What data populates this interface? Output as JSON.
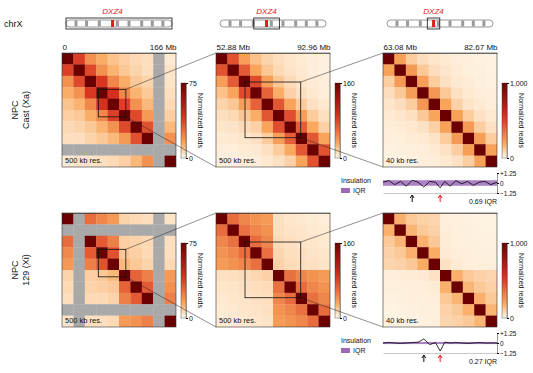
{
  "ideogram": {
    "label": "chrX",
    "locus": "DXZ4",
    "locus_color": "#e41a1c",
    "locus_mb": 72.9
  },
  "chart_data": [
    {
      "type": "heatmap",
      "xlim": [
        0,
        166
      ],
      "xticks": [
        0,
        {
          "value": 166,
          "label": "166 Mb"
        }
      ],
      "annotation": "500 kb res.",
      "ylabel": [
        "NPC",
        "Cast (Xa)"
      ],
      "colorbar_label": "Normalized reads",
      "colorbar_range": [
        0,
        75
      ],
      "colorbar_ticks": [
        0,
        75
      ],
      "cells": [
        [
          75,
          38,
          20,
          14,
          10,
          8,
          6,
          5,
          null,
          3
        ],
        [
          38,
          75,
          36,
          20,
          13,
          9,
          7,
          5,
          null,
          4
        ],
        [
          20,
          36,
          75,
          40,
          22,
          14,
          9,
          7,
          null,
          4
        ],
        [
          14,
          20,
          40,
          75,
          42,
          22,
          13,
          9,
          null,
          5
        ],
        [
          10,
          13,
          22,
          42,
          75,
          38,
          20,
          12,
          null,
          6
        ],
        [
          8,
          9,
          14,
          22,
          38,
          75,
          36,
          18,
          null,
          8
        ],
        [
          6,
          7,
          9,
          13,
          20,
          36,
          75,
          34,
          null,
          12
        ],
        [
          5,
          5,
          7,
          9,
          12,
          18,
          34,
          75,
          null,
          20
        ],
        [
          null,
          null,
          null,
          null,
          null,
          null,
          null,
          null,
          null,
          null
        ],
        [
          3,
          4,
          4,
          5,
          6,
          8,
          12,
          20,
          null,
          75
        ]
      ]
    },
    {
      "type": "heatmap",
      "xlim": [
        52.88,
        92.96
      ],
      "xticks": [
        {
          "value": 52.88,
          "label": "52.88 Mb"
        },
        {
          "value": 92.96,
          "label": "92.96 Mb"
        }
      ],
      "annotation": "500 kb res.",
      "colorbar_label": "Normalized reads",
      "colorbar_range": [
        0,
        160
      ],
      "colorbar_ticks": [
        0,
        160
      ],
      "cells": [
        [
          160,
          72,
          36,
          22,
          15,
          11,
          8,
          6,
          5,
          4
        ],
        [
          72,
          160,
          68,
          34,
          20,
          13,
          9,
          7,
          5,
          4
        ],
        [
          36,
          68,
          160,
          76,
          36,
          20,
          12,
          8,
          6,
          5
        ],
        [
          22,
          34,
          76,
          160,
          64,
          30,
          16,
          10,
          7,
          5
        ],
        [
          15,
          20,
          36,
          64,
          160,
          70,
          34,
          18,
          10,
          7
        ],
        [
          11,
          13,
          20,
          30,
          70,
          160,
          74,
          36,
          18,
          10
        ],
        [
          8,
          9,
          12,
          16,
          34,
          74,
          160,
          66,
          32,
          16
        ],
        [
          6,
          7,
          8,
          10,
          18,
          36,
          66,
          160,
          70,
          34
        ],
        [
          5,
          5,
          6,
          7,
          10,
          18,
          32,
          70,
          160,
          72
        ],
        [
          4,
          4,
          5,
          5,
          7,
          10,
          16,
          34,
          72,
          160
        ]
      ]
    },
    {
      "type": "heatmap",
      "xlim": [
        63.08,
        82.67
      ],
      "xticks": [
        {
          "value": 63.08,
          "label": "63.08 Mb"
        },
        {
          "value": 82.67,
          "label": "82.67 Mb"
        }
      ],
      "annotation": "40 kb res.",
      "colorbar_label": "Normalized reads",
      "colorbar_range": [
        0,
        1000
      ],
      "colorbar_ticks": [
        0,
        {
          "value": 1000,
          "label": "1,000"
        }
      ],
      "cells": [
        [
          1000,
          220,
          110,
          70,
          50,
          40,
          32,
          26,
          22,
          18
        ],
        [
          220,
          1000,
          240,
          120,
          70,
          48,
          36,
          28,
          24,
          20
        ],
        [
          110,
          240,
          1000,
          230,
          110,
          64,
          44,
          34,
          26,
          22
        ],
        [
          70,
          120,
          230,
          1000,
          250,
          120,
          60,
          42,
          32,
          26
        ],
        [
          50,
          70,
          110,
          250,
          1000,
          210,
          100,
          56,
          40,
          32
        ],
        [
          40,
          48,
          64,
          120,
          210,
          1000,
          220,
          110,
          60,
          42
        ],
        [
          32,
          36,
          44,
          60,
          100,
          220,
          1000,
          240,
          110,
          60
        ],
        [
          26,
          28,
          34,
          42,
          56,
          110,
          240,
          1000,
          230,
          110
        ],
        [
          22,
          24,
          26,
          32,
          40,
          60,
          110,
          230,
          1000,
          220
        ],
        [
          18,
          20,
          22,
          26,
          32,
          42,
          60,
          110,
          220,
          1000
        ]
      ]
    },
    {
      "type": "line",
      "title": "Insulation",
      "tick_labels": "y",
      "xlim": [
        63.08,
        82.67
      ],
      "ylim": [
        -1.25,
        1.25
      ],
      "yticks": [
        {
          "value": -1.25,
          "label": "−1.25"
        },
        0,
        {
          "value": 1.25,
          "label": "+1.25"
        }
      ],
      "x": [
        63.08,
        64.1,
        65.1,
        66.1,
        67.1,
        68.1,
        69.1,
        70.1,
        71.1,
        72.1,
        72.9,
        73.7,
        74.6,
        75.6,
        76.6,
        77.6,
        78.6,
        79.6,
        80.6,
        81.6,
        82.67
      ],
      "band": {
        "name": "IQR",
        "color": "#9b6bb8",
        "range": [
          -0.345,
          0.345
        ]
      },
      "annotation": "0.69 IQR",
      "series": [
        {
          "color": "#000000",
          "values": [
            0.1,
            0.3,
            -0.2,
            0.2,
            -0.4,
            0.35,
            0.1,
            -0.5,
            0.2,
            0.1,
            -0.6,
            0.2,
            -0.4,
            0.3,
            -0.1,
            0.2,
            -0.3,
            0.1,
            0.2,
            -0.2,
            0.1
          ]
        }
      ]
    },
    {
      "type": "heatmap",
      "xlim": [
        0,
        166
      ],
      "tick_labels": false,
      "annotation": "500 kb res.",
      "ylabel": [
        "NPC",
        "129 (Xi)"
      ],
      "colorbar_label": "Normalized reads",
      "colorbar_range": [
        0,
        75
      ],
      "colorbar_ticks": [
        0,
        75
      ],
      "cells": [
        [
          75,
          null,
          28,
          22,
          18,
          7,
          6,
          5,
          null,
          4
        ],
        [
          null,
          null,
          null,
          null,
          null,
          null,
          null,
          null,
          null,
          null
        ],
        [
          28,
          null,
          75,
          32,
          24,
          8,
          7,
          6,
          null,
          5
        ],
        [
          22,
          null,
          32,
          75,
          34,
          9,
          8,
          6,
          null,
          5
        ],
        [
          18,
          null,
          24,
          34,
          75,
          12,
          9,
          7,
          null,
          6
        ],
        [
          7,
          null,
          8,
          9,
          12,
          75,
          30,
          24,
          null,
          18
        ],
        [
          6,
          null,
          7,
          8,
          9,
          30,
          75,
          32,
          null,
          20
        ],
        [
          5,
          null,
          6,
          6,
          7,
          24,
          32,
          75,
          null,
          24
        ],
        [
          null,
          null,
          null,
          null,
          null,
          null,
          null,
          null,
          null,
          null
        ],
        [
          4,
          null,
          5,
          5,
          6,
          18,
          20,
          24,
          null,
          75
        ]
      ]
    },
    {
      "type": "heatmap",
      "xlim": [
        52.88,
        92.96
      ],
      "tick_labels": false,
      "annotation": "500 kb res.",
      "colorbar_label": "Normalized reads",
      "colorbar_range": [
        0,
        160
      ],
      "colorbar_ticks": [
        0,
        160
      ],
      "cells": [
        [
          160,
          60,
          48,
          42,
          38,
          10,
          8,
          7,
          6,
          5
        ],
        [
          60,
          160,
          58,
          48,
          42,
          11,
          9,
          8,
          7,
          6
        ],
        [
          48,
          58,
          160,
          60,
          48,
          12,
          10,
          9,
          8,
          7
        ],
        [
          42,
          48,
          60,
          160,
          58,
          14,
          11,
          10,
          9,
          8
        ],
        [
          38,
          42,
          48,
          58,
          160,
          16,
          12,
          11,
          10,
          9
        ],
        [
          10,
          11,
          12,
          14,
          16,
          160,
          58,
          48,
          42,
          38
        ],
        [
          8,
          9,
          10,
          11,
          12,
          58,
          160,
          60,
          48,
          42
        ],
        [
          7,
          8,
          9,
          10,
          11,
          48,
          60,
          160,
          58,
          48
        ],
        [
          6,
          7,
          8,
          9,
          10,
          42,
          48,
          58,
          160,
          60
        ],
        [
          5,
          6,
          7,
          8,
          9,
          38,
          42,
          48,
          60,
          160
        ]
      ]
    },
    {
      "type": "heatmap",
      "xlim": [
        63.08,
        82.67
      ],
      "tick_labels": false,
      "annotation": "40 kb res.",
      "colorbar_label": "Normalized reads",
      "colorbar_range": [
        0,
        1000
      ],
      "colorbar_ticks": [
        0,
        {
          "value": 1000,
          "label": "1,000"
        }
      ],
      "cells": [
        [
          1000,
          180,
          120,
          100,
          90,
          30,
          26,
          22,
          20,
          18
        ],
        [
          180,
          1000,
          170,
          120,
          100,
          32,
          28,
          24,
          22,
          20
        ],
        [
          120,
          170,
          1000,
          180,
          120,
          34,
          30,
          26,
          24,
          22
        ],
        [
          100,
          120,
          180,
          1000,
          190,
          38,
          32,
          28,
          26,
          24
        ],
        [
          90,
          100,
          120,
          190,
          1000,
          60,
          36,
          30,
          28,
          26
        ],
        [
          30,
          32,
          34,
          38,
          60,
          1000,
          180,
          120,
          100,
          90
        ],
        [
          26,
          28,
          30,
          32,
          36,
          180,
          1000,
          170,
          120,
          100
        ],
        [
          22,
          24,
          26,
          28,
          30,
          120,
          170,
          1000,
          180,
          120
        ],
        [
          20,
          22,
          24,
          26,
          28,
          100,
          120,
          180,
          1000,
          170
        ],
        [
          18,
          20,
          22,
          24,
          26,
          90,
          100,
          120,
          170,
          1000
        ]
      ]
    },
    {
      "type": "line",
      "title": "Insulation",
      "tick_labels": "y",
      "xlim": [
        63.08,
        82.67
      ],
      "ylim": [
        -1.25,
        1.25
      ],
      "yticks": [
        {
          "value": -1.25,
          "label": "−1.25"
        },
        0,
        {
          "value": 1.25,
          "label": "+1.25"
        }
      ],
      "x": [
        63.08,
        64.1,
        65.1,
        66.1,
        67.1,
        68.1,
        69.1,
        70.1,
        71.1,
        72.1,
        72.9,
        73.7,
        74.6,
        75.6,
        76.6,
        77.6,
        78.6,
        79.6,
        80.6,
        81.6,
        82.67
      ],
      "band": {
        "name": "IQR",
        "color": "#9b6bb8",
        "range": [
          -0.135,
          0.135
        ]
      },
      "annotation": "0.27 IQR",
      "series": [
        {
          "color": "#000000",
          "values": [
            0,
            0.05,
            0,
            -0.05,
            0,
            0.05,
            0.1,
            0.5,
            -0.2,
            0.05,
            -1,
            0.1,
            0,
            0.05,
            0,
            -0.05,
            0,
            0.05,
            0,
            0,
            0
          ]
        }
      ]
    }
  ]
}
